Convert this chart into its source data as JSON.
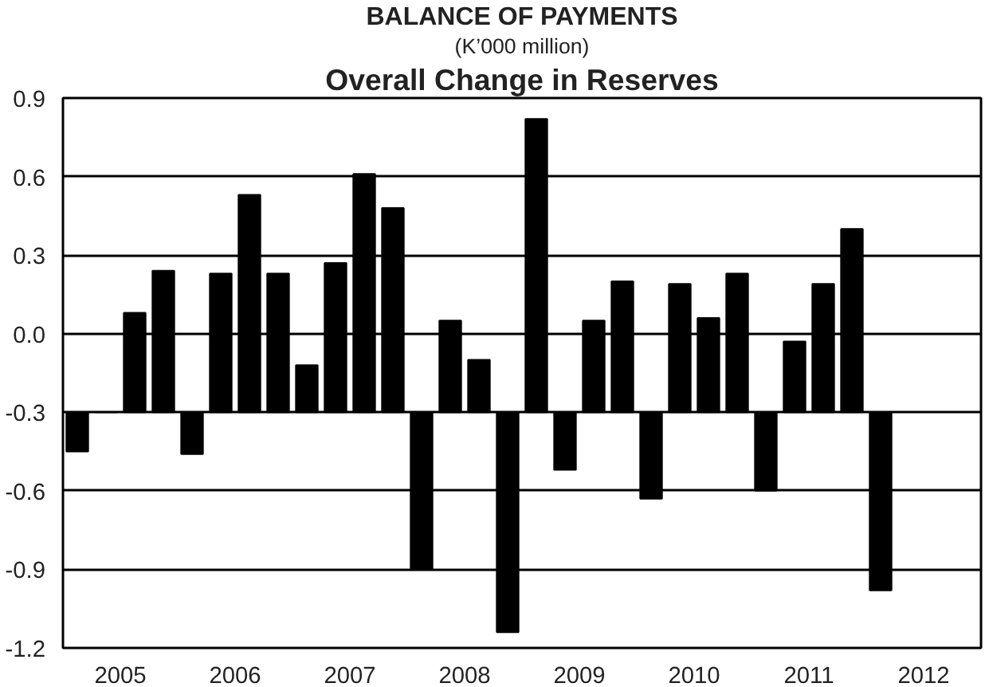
{
  "chart_data": {
    "type": "bar",
    "title": "BALANCE OF PAYMENTS",
    "subtitle": "(K’000 million)",
    "annotations": [
      "Overall Change in Reserves"
    ],
    "x": [
      2005.125,
      2005.375,
      2005.625,
      2005.875,
      2006.125,
      2006.375,
      2006.625,
      2006.875,
      2007.125,
      2007.375,
      2007.625,
      2007.875,
      2008.125,
      2008.375,
      2008.625,
      2008.875,
      2009.125,
      2009.375,
      2009.625,
      2009.875,
      2010.125,
      2010.375,
      2010.625,
      2010.875,
      2011.125,
      2011.375,
      2011.625,
      2011.875,
      2012.125
    ],
    "values": [
      -0.15,
      0,
      0.38,
      0.54,
      -0.16,
      0.53,
      0.83,
      0.53,
      0.18,
      0.57,
      0.91,
      0.78,
      -0.6,
      0.35,
      0.2,
      -0.84,
      1.12,
      -0.22,
      0.35,
      0.5,
      -0.33,
      0.49,
      0.36,
      0.53,
      -0.3,
      0.27,
      0.49,
      0.7,
      -0.68
    ],
    "base": [
      -0.3,
      -0.3,
      -0.3,
      -0.3,
      -0.3,
      -0.3,
      -0.3,
      -0.3,
      -0.3,
      -0.3,
      -0.3,
      -0.3,
      -0.3,
      -0.3,
      -0.3,
      -0.3,
      -0.3,
      -0.3,
      -0.3,
      -0.3,
      -0.3,
      -0.3,
      -0.3,
      -0.3,
      -0.3,
      -0.3,
      -0.3,
      -0.3,
      -0.3
    ],
    "color": "#000000",
    "xlim": [
      2005,
      2013
    ],
    "xticks": [
      {
        "value": 2005.5,
        "label": "2005"
      },
      {
        "value": 2006.5,
        "label": "2006"
      },
      {
        "value": 2007.5,
        "label": "2007"
      },
      {
        "value": 2008.5,
        "label": "2008"
      },
      {
        "value": 2009.5,
        "label": "2009"
      },
      {
        "value": 2010.5,
        "label": "2010"
      },
      {
        "value": 2011.5,
        "label": "2011"
      },
      {
        "value": 2012.5,
        "label": "2012"
      }
    ],
    "ylim": [
      -1.2,
      0.9
    ],
    "yticks": [
      {
        "value": 0.9,
        "label": "0.9"
      },
      {
        "value": 0.6,
        "label": "0.6"
      },
      {
        "value": 0.3,
        "label": "0.3"
      },
      {
        "value": 0.0,
        "label": "0.0"
      },
      {
        "value": -0.3,
        "label": "-0.3"
      },
      {
        "value": -0.6,
        "label": "-0.6"
      },
      {
        "value": -0.9,
        "label": "-0.9"
      },
      {
        "value": -1.2,
        "label": "-1.2"
      }
    ],
    "grid": "y"
  }
}
